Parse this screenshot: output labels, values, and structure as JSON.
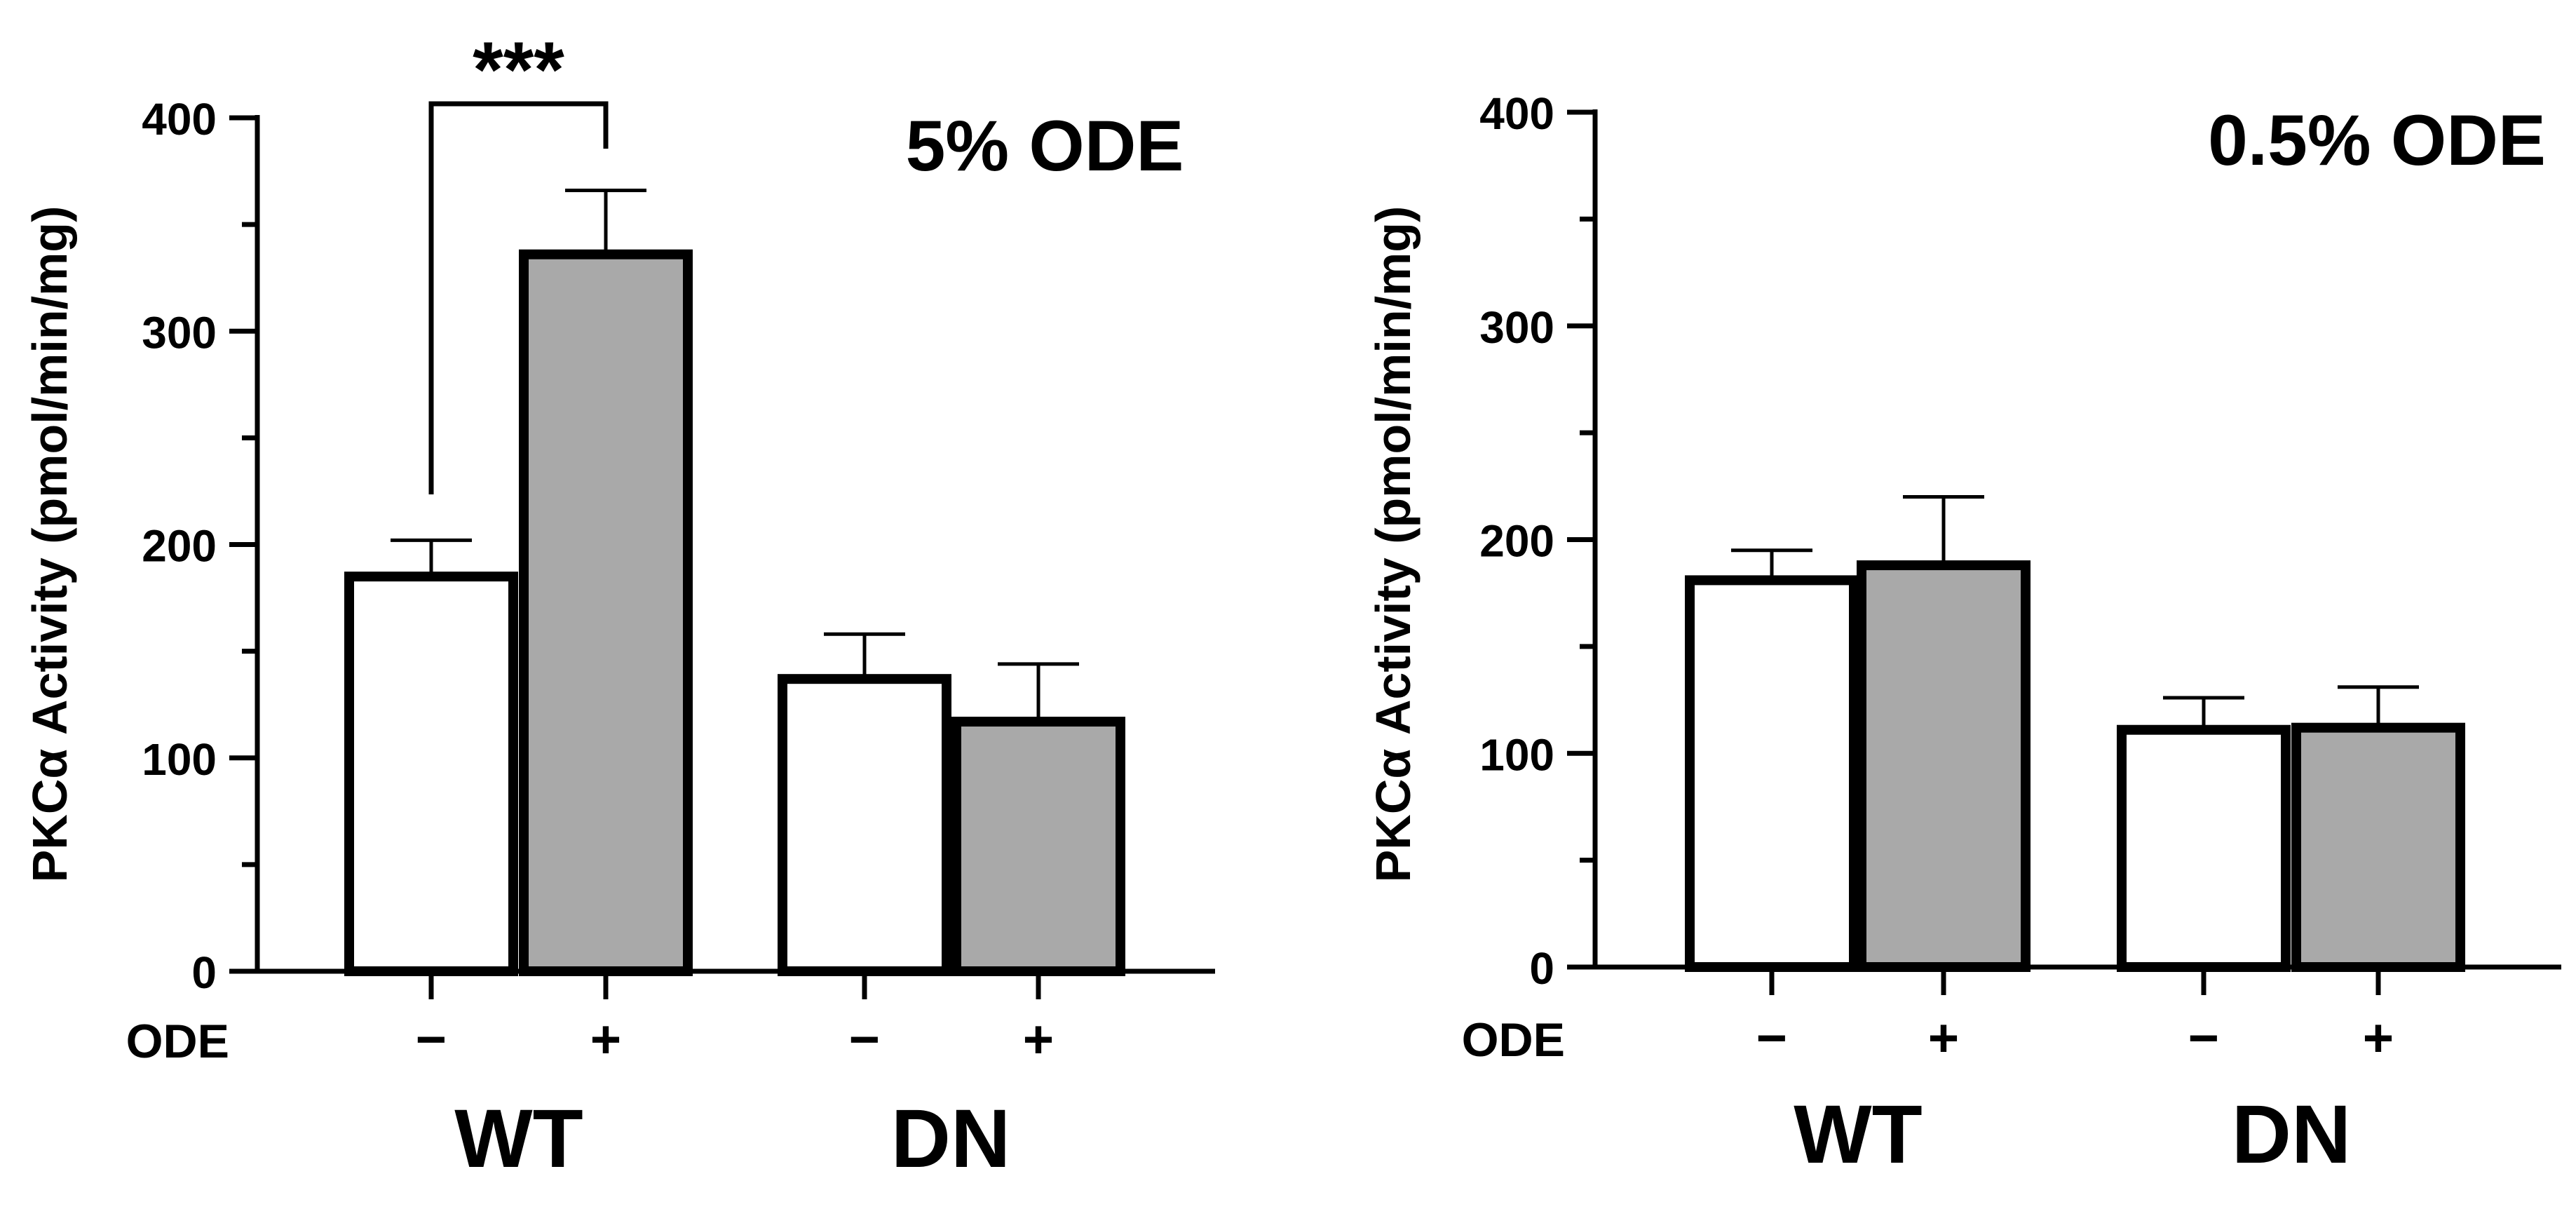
{
  "colors": {
    "control_fill": "#ffffff",
    "treated_fill": "#a9a9a9",
    "stroke": "#000000"
  },
  "chart_data": [
    {
      "type": "bar",
      "title": "5% ODE",
      "ylabel": "PKCα Activity (pmol/min/mg)",
      "ylim": [
        0,
        400
      ],
      "yticks": [
        0,
        100,
        200,
        300,
        400
      ],
      "row_label": "ODE",
      "categories": [
        "−",
        "+",
        "−",
        "+"
      ],
      "groups": [
        {
          "name": "WT",
          "categories": [
            0,
            1
          ]
        },
        {
          "name": "DN",
          "categories": [
            2,
            3
          ]
        }
      ],
      "series": [
        {
          "name": "ODE −",
          "fill": "control_fill"
        },
        {
          "name": "ODE +",
          "fill": "treated_fill"
        }
      ],
      "values": [
        185,
        336,
        137,
        117
      ],
      "errors": [
        17,
        30,
        21,
        27
      ],
      "significance": {
        "from": 0,
        "to": 1,
        "label": "***"
      }
    },
    {
      "type": "bar",
      "title": "0.5% ODE",
      "ylabel": "PKCα Activity (pmol/min/mg)",
      "ylim": [
        0,
        400
      ],
      "yticks": [
        0,
        100,
        200,
        300,
        400
      ],
      "row_label": "ODE",
      "categories": [
        "−",
        "+",
        "−",
        "+"
      ],
      "groups": [
        {
          "name": "WT",
          "categories": [
            0,
            1
          ]
        },
        {
          "name": "DN",
          "categories": [
            2,
            3
          ]
        }
      ],
      "series": [
        {
          "name": "ODE −",
          "fill": "control_fill"
        },
        {
          "name": "ODE +",
          "fill": "treated_fill"
        }
      ],
      "values": [
        181,
        188,
        111,
        112
      ],
      "errors": [
        14,
        32,
        15,
        19
      ]
    }
  ]
}
